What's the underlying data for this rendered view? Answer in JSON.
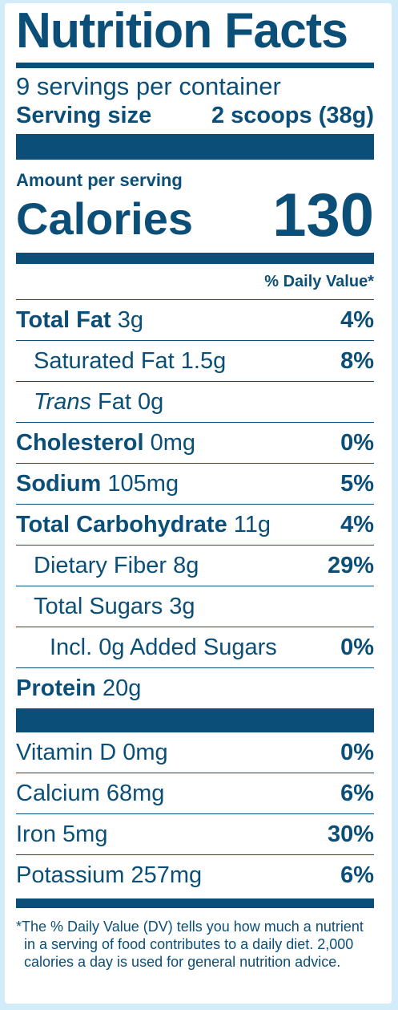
{
  "title": "Nutrition Facts",
  "servings_per_container": "9 servings per container",
  "serving_size_label": "Serving size",
  "serving_size_value": "2 scoops (38g)",
  "amount_per_serving": "Amount per serving",
  "calories_label": "Calories",
  "calories_value": "130",
  "daily_value_header": "% Daily Value*",
  "nutrients": [
    {
      "name": "Total Fat",
      "amount": "3g",
      "dv": "4%"
    },
    {
      "name": "Saturated Fat",
      "amount": "1.5g",
      "dv": "8%"
    },
    {
      "name": "Trans",
      "name_suffix": "Fat",
      "amount": "0g",
      "dv": ""
    },
    {
      "name": "Cholesterol",
      "amount": "0mg",
      "dv": "0%"
    },
    {
      "name": "Sodium",
      "amount": "105mg",
      "dv": "5%"
    },
    {
      "name": "Total Carbohydrate",
      "amount": "11g",
      "dv": "4%"
    },
    {
      "name": "Dietary Fiber",
      "amount": "8g",
      "dv": "29%"
    },
    {
      "name": "Total Sugars",
      "amount": "3g",
      "dv": ""
    },
    {
      "name": "Incl. 0g Added Sugars",
      "amount": "",
      "dv": "0%"
    },
    {
      "name": "Protein",
      "amount": "20g",
      "dv": ""
    }
  ],
  "vitamins": [
    {
      "name": "Vitamin D",
      "amount": "0mg",
      "dv": "0%"
    },
    {
      "name": "Calcium",
      "amount": "68mg",
      "dv": "6%"
    },
    {
      "name": "Iron",
      "amount": "5mg",
      "dv": "30%"
    },
    {
      "name": "Potassium",
      "amount": "257mg",
      "dv": "6%"
    }
  ],
  "footnote": {
    "line1": "*The % Daily Value (DV) tells you how much a nutrient",
    "line2": "in a serving of food contributes to a daily diet. 2,000",
    "line3": "calories a day is used for general nutrition advice."
  }
}
